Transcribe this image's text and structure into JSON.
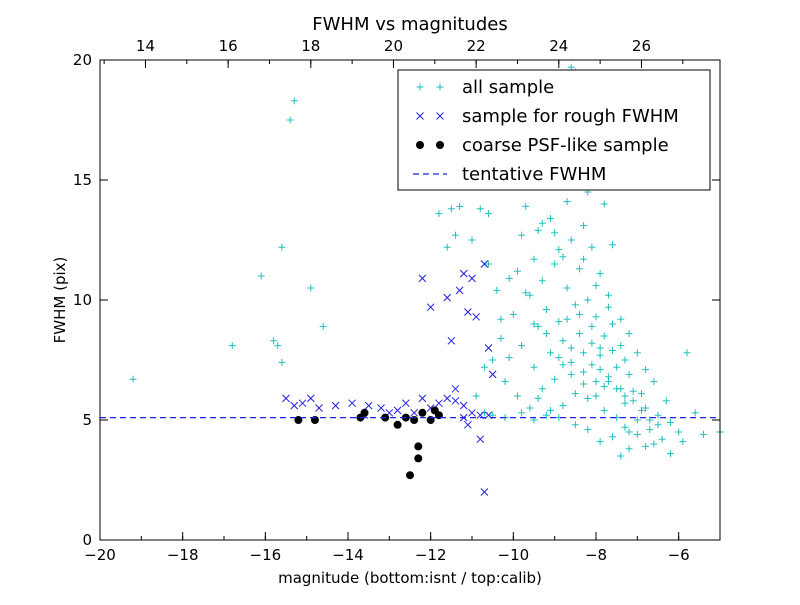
{
  "chart_data": {
    "type": "scatter",
    "title": "FWHM vs magnitudes",
    "xlabel": "magnitude (bottom:isnt / top:calib)",
    "ylabel": "FWHM (pix)",
    "xlim": [
      -20,
      -5
    ],
    "ylim": [
      0,
      20
    ],
    "xticks": [
      -20,
      -18,
      -16,
      -14,
      -12,
      -10,
      -8,
      -6
    ],
    "xtick_labels": [
      "−20",
      "−18",
      "−16",
      "−14",
      "−12",
      "−10",
      "−8",
      "−6"
    ],
    "yticks": [
      0,
      5,
      10,
      15,
      20
    ],
    "ytick_labels": [
      "0",
      "5",
      "10",
      "15",
      "20"
    ],
    "top_axis": {
      "ticks": [
        14,
        16,
        18,
        20,
        22,
        24,
        26
      ],
      "tick_labels": [
        "14",
        "16",
        "18",
        "20",
        "22",
        "24",
        "26"
      ],
      "xlim": [
        12.9,
        27.9
      ]
    },
    "legend": {
      "placement": "top-right"
    },
    "series": [
      {
        "name": "all sample",
        "marker": "+",
        "color": "#1fbfbf",
        "points": [
          [
            -19.2,
            6.7
          ],
          [
            -16.8,
            8.1
          ],
          [
            -16.1,
            11.0
          ],
          [
            -15.8,
            8.3
          ],
          [
            -15.7,
            8.1
          ],
          [
            -15.6,
            7.4
          ],
          [
            -15.6,
            12.2
          ],
          [
            -15.4,
            17.5
          ],
          [
            -15.3,
            18.3
          ],
          [
            -14.9,
            10.5
          ],
          [
            -14.6,
            8.9
          ],
          [
            -11.8,
            13.6
          ],
          [
            -11.6,
            12.2
          ],
          [
            -11.5,
            13.8
          ],
          [
            -11.4,
            12.7
          ],
          [
            -11.3,
            13.9
          ],
          [
            -11.0,
            12.5
          ],
          [
            -10.8,
            13.8
          ],
          [
            -10.6,
            13.6
          ],
          [
            -10.6,
            11.5
          ],
          [
            -10.4,
            10.4
          ],
          [
            -10.3,
            8.4
          ],
          [
            -10.2,
            6.6
          ],
          [
            -10.1,
            7.6
          ],
          [
            -10.0,
            9.4
          ],
          [
            -9.9,
            11.2
          ],
          [
            -9.9,
            6.0
          ],
          [
            -9.8,
            12.7
          ],
          [
            -9.8,
            8.1
          ],
          [
            -9.7,
            13.9
          ],
          [
            -9.6,
            10.2
          ],
          [
            -9.6,
            5.5
          ],
          [
            -9.5,
            11.7
          ],
          [
            -9.5,
            7.2
          ],
          [
            -9.4,
            12.9
          ],
          [
            -9.4,
            8.9
          ],
          [
            -9.3,
            10.8
          ],
          [
            -9.3,
            6.3
          ],
          [
            -9.2,
            9.6
          ],
          [
            -9.2,
            5.2
          ],
          [
            -9.1,
            13.4
          ],
          [
            -9.1,
            7.8
          ],
          [
            -9.0,
            11.5
          ],
          [
            -9.0,
            6.7
          ],
          [
            -8.9,
            9.1
          ],
          [
            -8.9,
            12.1
          ],
          [
            -8.8,
            8.3
          ],
          [
            -8.8,
            5.6
          ],
          [
            -8.7,
            10.5
          ],
          [
            -8.7,
            14.1
          ],
          [
            -8.6,
            7.4
          ],
          [
            -8.6,
            12.5
          ],
          [
            -8.5,
            9.8
          ],
          [
            -8.5,
            6.1
          ],
          [
            -8.4,
            11.3
          ],
          [
            -8.4,
            8.6
          ],
          [
            -8.3,
            13.1
          ],
          [
            -8.3,
            7.0
          ],
          [
            -8.2,
            10.0
          ],
          [
            -8.2,
            5.9
          ],
          [
            -8.1,
            12.2
          ],
          [
            -8.1,
            8.9
          ],
          [
            -8.0,
            9.3
          ],
          [
            -8.0,
            6.6
          ],
          [
            -7.9,
            11.1
          ],
          [
            -7.9,
            7.7
          ],
          [
            -7.8,
            8.5
          ],
          [
            -7.8,
            5.4
          ],
          [
            -7.7,
            10.2
          ],
          [
            -7.7,
            6.8
          ],
          [
            -7.6,
            9.0
          ],
          [
            -7.6,
            12.3
          ],
          [
            -7.5,
            7.2
          ],
          [
            -7.5,
            5.1
          ],
          [
            -7.4,
            8.1
          ],
          [
            -7.4,
            6.3
          ],
          [
            -7.3,
            7.5
          ],
          [
            -7.3,
            5.7
          ],
          [
            -7.2,
            6.9
          ],
          [
            -7.2,
            4.5
          ],
          [
            -7.1,
            6.2
          ],
          [
            -7.0,
            5.0
          ],
          [
            -6.9,
            6.1
          ],
          [
            -6.8,
            5.5
          ],
          [
            -6.7,
            4.6
          ],
          [
            -6.6,
            6.6
          ],
          [
            -6.5,
            5.2
          ],
          [
            -6.4,
            4.2
          ],
          [
            -6.3,
            5.8
          ],
          [
            -6.2,
            4.9
          ],
          [
            -6.0,
            4.5
          ],
          [
            -5.8,
            7.8
          ],
          [
            -5.6,
            5.3
          ],
          [
            -5.4,
            4.4
          ],
          [
            -5.0,
            4.5
          ],
          [
            -8.6,
            19.7
          ],
          [
            -8.5,
            19.5
          ],
          [
            -8.2,
            14.5
          ],
          [
            -7.8,
            14.0
          ],
          [
            -7.6,
            15.6
          ],
          [
            -9.3,
            13.2
          ],
          [
            -9.0,
            12.8
          ],
          [
            -8.8,
            11.8
          ],
          [
            -8.3,
            11.7
          ],
          [
            -8.0,
            10.6
          ],
          [
            -7.7,
            9.7
          ],
          [
            -7.4,
            9.2
          ],
          [
            -7.2,
            8.6
          ],
          [
            -7.0,
            7.8
          ],
          [
            -6.8,
            7.1
          ],
          [
            -8.7,
            9.2
          ],
          [
            -8.4,
            9.4
          ],
          [
            -8.1,
            8.2
          ],
          [
            -7.9,
            8.0
          ],
          [
            -7.6,
            7.9
          ],
          [
            -8.8,
            7.3
          ],
          [
            -8.6,
            6.9
          ],
          [
            -8.3,
            6.5
          ],
          [
            -8.0,
            6.0
          ],
          [
            -7.8,
            6.4
          ],
          [
            -9.4,
            5.9
          ],
          [
            -9.1,
            5.4
          ],
          [
            -8.9,
            5.1
          ],
          [
            -8.5,
            4.8
          ],
          [
            -8.2,
            4.6
          ],
          [
            -7.9,
            4.1
          ],
          [
            -7.6,
            4.3
          ],
          [
            -7.3,
            4.7
          ],
          [
            -7.0,
            4.4
          ],
          [
            -6.8,
            3.9
          ],
          [
            -7.4,
            3.5
          ],
          [
            -7.2,
            3.8
          ],
          [
            -6.6,
            4.0
          ],
          [
            -6.2,
            3.6
          ],
          [
            -5.9,
            4.1
          ],
          [
            -10.7,
            5.3
          ],
          [
            -10.5,
            5.2
          ],
          [
            -10.2,
            5.1
          ],
          [
            -9.8,
            5.3
          ],
          [
            -9.5,
            5.0
          ],
          [
            -10.9,
            6.0
          ],
          [
            -10.7,
            7.2
          ],
          [
            -10.5,
            7.5
          ],
          [
            -10.3,
            9.2
          ],
          [
            -10.1,
            10.9
          ],
          [
            -9.7,
            10.3
          ],
          [
            -9.5,
            9.0
          ],
          [
            -9.2,
            8.6
          ],
          [
            -8.9,
            7.6
          ],
          [
            -8.6,
            8.0
          ],
          [
            -8.3,
            7.8
          ],
          [
            -8.1,
            7.3
          ],
          [
            -7.9,
            7.1
          ],
          [
            -7.7,
            6.6
          ],
          [
            -7.5,
            6.3
          ],
          [
            -7.3,
            6.0
          ],
          [
            -7.1,
            5.8
          ],
          [
            -6.9,
            5.4
          ],
          [
            -6.7,
            5.0
          ],
          [
            -6.5,
            4.8
          ]
        ]
      },
      {
        "name": "sample for rough FWHM",
        "marker": "x",
        "color": "#2020e0",
        "points": [
          [
            -15.5,
            5.9
          ],
          [
            -15.3,
            5.6
          ],
          [
            -15.1,
            5.7
          ],
          [
            -14.9,
            5.9
          ],
          [
            -14.7,
            5.5
          ],
          [
            -14.3,
            5.6
          ],
          [
            -13.9,
            5.7
          ],
          [
            -13.5,
            5.6
          ],
          [
            -13.2,
            5.5
          ],
          [
            -13.0,
            5.3
          ],
          [
            -12.8,
            5.4
          ],
          [
            -12.6,
            5.7
          ],
          [
            -12.4,
            5.3
          ],
          [
            -12.2,
            5.9
          ],
          [
            -12.0,
            5.5
          ],
          [
            -11.8,
            5.7
          ],
          [
            -11.6,
            5.9
          ],
          [
            -11.4,
            5.8
          ],
          [
            -11.2,
            5.6
          ],
          [
            -11.0,
            5.3
          ],
          [
            -10.8,
            5.2
          ],
          [
            -10.6,
            5.2
          ],
          [
            -12.2,
            10.9
          ],
          [
            -11.2,
            11.1
          ],
          [
            -11.0,
            10.9
          ],
          [
            -10.7,
            11.5
          ],
          [
            -11.3,
            10.4
          ],
          [
            -11.6,
            10.1
          ],
          [
            -12.0,
            9.7
          ],
          [
            -11.5,
            8.3
          ],
          [
            -11.1,
            9.5
          ],
          [
            -10.9,
            9.3
          ],
          [
            -10.6,
            8.0
          ],
          [
            -10.5,
            6.9
          ],
          [
            -11.4,
            6.3
          ],
          [
            -11.2,
            5.1
          ],
          [
            -11.1,
            4.8
          ],
          [
            -10.8,
            4.2
          ],
          [
            -10.7,
            2.0
          ],
          [
            -13.6,
            5.2
          ]
        ]
      },
      {
        "name": "coarse PSF-like sample",
        "marker": "o",
        "color": "#000000",
        "points": [
          [
            -15.2,
            5.0
          ],
          [
            -14.8,
            5.0
          ],
          [
            -13.7,
            5.1
          ],
          [
            -13.6,
            5.3
          ],
          [
            -13.1,
            5.1
          ],
          [
            -12.8,
            4.8
          ],
          [
            -12.6,
            5.1
          ],
          [
            -12.4,
            5.0
          ],
          [
            -12.3,
            3.9
          ],
          [
            -12.3,
            3.4
          ],
          [
            -12.5,
            2.7
          ],
          [
            -12.2,
            5.3
          ],
          [
            -12.0,
            5.0
          ],
          [
            -11.9,
            5.4
          ],
          [
            -11.8,
            5.2
          ]
        ]
      },
      {
        "name": "tentative FWHM",
        "marker": "dashed-line",
        "color": "#2020e0",
        "y": 5.1
      }
    ]
  }
}
